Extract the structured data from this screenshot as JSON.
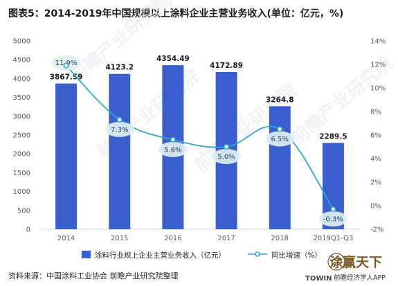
{
  "chart_data": {
    "type": "bar+line",
    "title": "图表5：2014-2019年中国规模以上涂料企业主营业务收入(单位：亿元，%)",
    "categories": [
      "2014",
      "2015",
      "2016",
      "2017",
      "2018",
      "2019Q1-Q3"
    ],
    "series": [
      {
        "name": "涂料行业规上企业主营业务收入（亿元）",
        "type": "bar",
        "axis": "left",
        "values": [
          3867.59,
          4123.2,
          4354.49,
          4172.89,
          3264.8,
          2289.5
        ],
        "labels": [
          "3867.59",
          "4123.2",
          "4354.49",
          "4172.89",
          "3264.8",
          "2289.5"
        ],
        "color": "#3a5fcd"
      },
      {
        "name": "同比增速（%）",
        "type": "line",
        "axis": "right",
        "values": [
          11.9,
          7.3,
          5.6,
          5.0,
          6.5,
          -0.3
        ],
        "labels": [
          "11.9%",
          "7.3%",
          "5.6%",
          "5.0%",
          "6.5%",
          "-0.3%"
        ],
        "color": "#2ea8d6"
      }
    ],
    "y_left": {
      "lim": [
        0,
        5000
      ],
      "ticks": [
        "0",
        "500",
        "1000",
        "1500",
        "2000",
        "2500",
        "3000",
        "3500",
        "4000",
        "4500",
        "5000"
      ]
    },
    "y_right": {
      "lim": [
        -2,
        14
      ],
      "ticks": [
        "-2%",
        "0%",
        "2%",
        "4%",
        "6%",
        "8%",
        "10%",
        "12%",
        "14%"
      ]
    },
    "grid": false,
    "legend_position": "bottom"
  },
  "source": "资料来源：中国涂料工业协会 前瞻产业研究院整理",
  "watermark": "前瞻产业研究院",
  "logo": {
    "cn": "涂赢天下",
    "en": "TOWIN"
  },
  "app_credit": "前瞻经济学人APP",
  "colors": {
    "bar": "#3a5fcd",
    "line": "#2ea8d6",
    "bubble": "#dfeff3"
  }
}
